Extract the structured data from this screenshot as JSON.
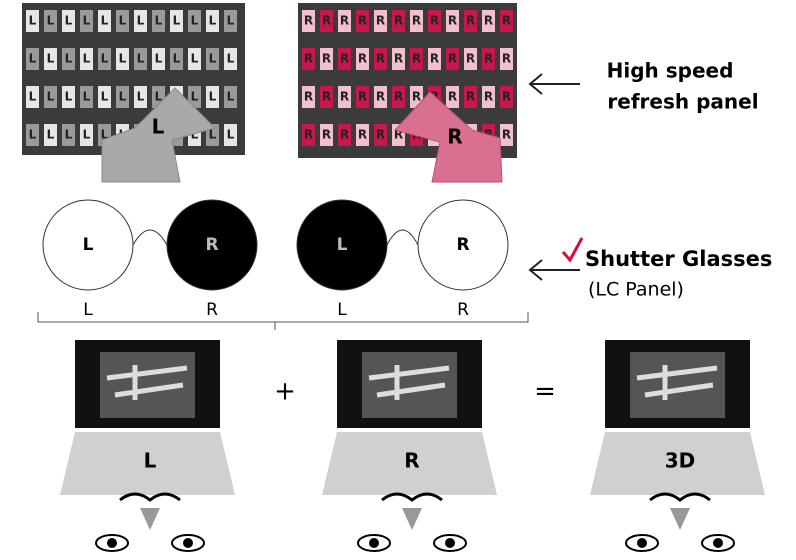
{
  "panels": {
    "left": {
      "cell": "L",
      "arrow": "L"
    },
    "right": {
      "cell": "R",
      "arrow": "R"
    }
  },
  "refresh_label": {
    "line1": "High speed",
    "line2": "refresh  panel"
  },
  "glasses": [
    {
      "left_lens": "L",
      "right_lens": "R",
      "left_label": "L",
      "right_label": "R"
    },
    {
      "left_lens": "L",
      "right_lens": "R",
      "left_label": "L",
      "right_label": "R"
    }
  ],
  "shutter_label": {
    "title": "Shutter Glasses",
    "subtitle": "(LC Panel)"
  },
  "screens": [
    {
      "label": "L"
    },
    {
      "label": "R"
    },
    {
      "label": "3D"
    }
  ],
  "operators": [
    "+",
    "="
  ]
}
